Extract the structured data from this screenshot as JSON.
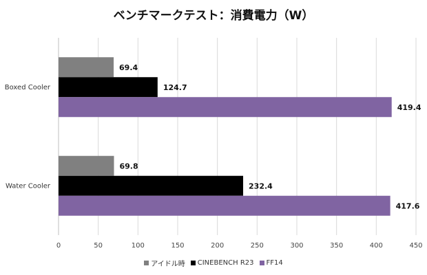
{
  "chart_data": {
    "type": "bar",
    "orientation": "horizontal",
    "title": "ベンチマークテスト：消費電力（W）",
    "categories": [
      "Boxed Cooler",
      "Water Cooler"
    ],
    "series": [
      {
        "name": "アイドル時",
        "color": "#808080",
        "values": [
          69.4,
          69.8
        ]
      },
      {
        "name": "CINEBENCH R23",
        "color": "#000000",
        "values": [
          124.7,
          232.4
        ]
      },
      {
        "name": "FF14",
        "color": "#8064a2",
        "values": [
          419.4,
          417.6
        ]
      }
    ],
    "xlim": [
      0,
      450
    ],
    "xticks": [
      0,
      50,
      100,
      150,
      200,
      250,
      300,
      350,
      400,
      450
    ],
    "grid": true,
    "legend_position": "bottom"
  }
}
